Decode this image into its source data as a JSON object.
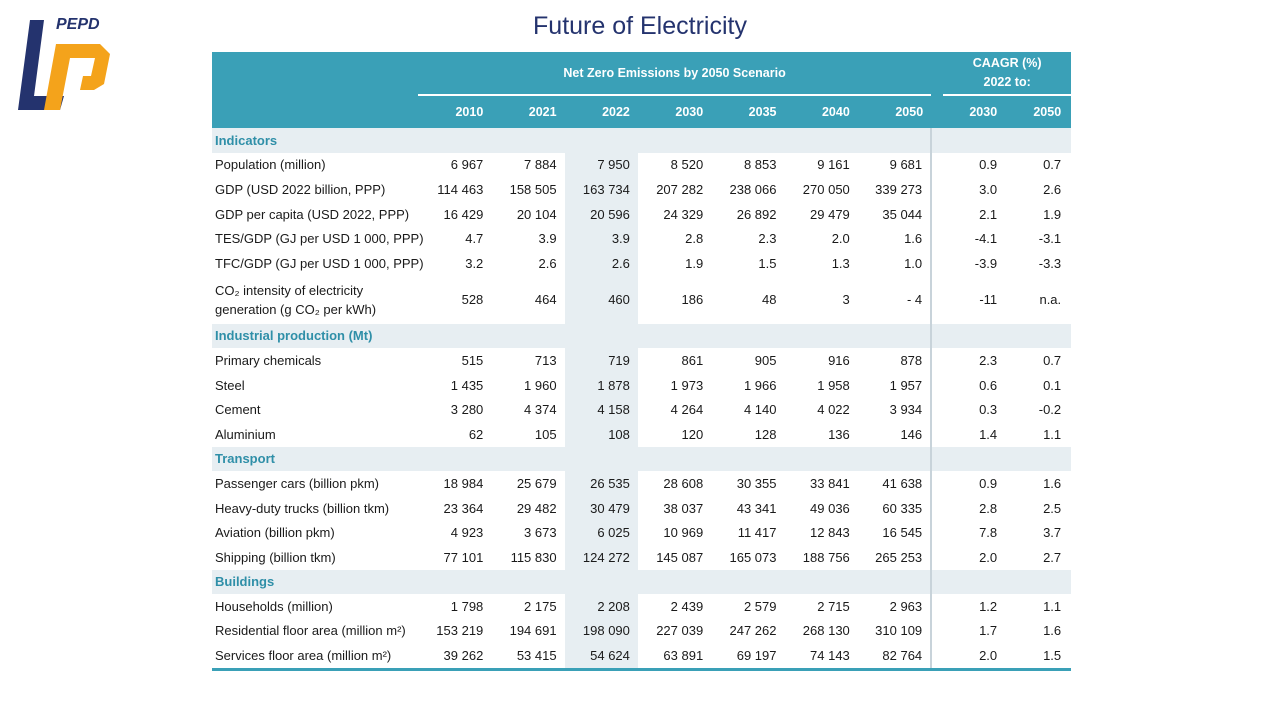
{
  "brand": {
    "logo_text": "PEPD",
    "colors": {
      "blue": "#24336e",
      "orange": "#f4a31b"
    }
  },
  "title": "Future of Electricity",
  "header": {
    "scenario": "Net Zero Emissions by 2050 Scenario",
    "caagr_line1": "CAAGR (%)",
    "caagr_line2": "2022 to:",
    "years": [
      "2010",
      "2021",
      "2022",
      "2030",
      "2035",
      "2040",
      "2050"
    ],
    "caagr_years": [
      "2030",
      "2050"
    ]
  },
  "sections": [
    {
      "title": "Indicators",
      "rows": [
        {
          "label": "Population (million)",
          "values": [
            "6 967",
            "7 884",
            "7 950",
            "8 520",
            "8 853",
            "9 161",
            "9 681"
          ],
          "caagr": [
            "0.9",
            "0.7"
          ]
        },
        {
          "label": "GDP (USD 2022 billion, PPP)",
          "values": [
            "114 463",
            "158 505",
            "163 734",
            "207 282",
            "238 066",
            "270 050",
            "339 273"
          ],
          "caagr": [
            "3.0",
            "2.6"
          ]
        },
        {
          "label": "GDP per capita (USD 2022, PPP)",
          "values": [
            "16 429",
            "20 104",
            "20 596",
            "24 329",
            "26 892",
            "29 479",
            "35 044"
          ],
          "caagr": [
            "2.1",
            "1.9"
          ]
        },
        {
          "label": "TES/GDP (GJ per USD 1 000, PPP)",
          "values": [
            "4.7",
            "3.9",
            "3.9",
            "2.8",
            "2.3",
            "2.0",
            "1.6"
          ],
          "caagr": [
            "-4.1",
            "-3.1"
          ]
        },
        {
          "label": "TFC/GDP (GJ per USD 1 000, PPP)",
          "values": [
            "3.2",
            "2.6",
            "2.6",
            "1.9",
            "1.5",
            "1.3",
            "1.0"
          ],
          "caagr": [
            "-3.9",
            "-3.3"
          ]
        },
        {
          "label": "CO₂ intensity of electricity",
          "label2": "generation (g CO₂ per kWh)",
          "values": [
            "528",
            "464",
            "460",
            "186",
            "48",
            "3",
            "- 4"
          ],
          "caagr": [
            "-11",
            "n.a."
          ]
        }
      ]
    },
    {
      "title": "Industrial production (Mt)",
      "rows": [
        {
          "label": "Primary chemicals",
          "values": [
            "515",
            "713",
            "719",
            "861",
            "905",
            "916",
            "878"
          ],
          "caagr": [
            "2.3",
            "0.7"
          ]
        },
        {
          "label": "Steel",
          "values": [
            "1 435",
            "1 960",
            "1 878",
            "1 973",
            "1 966",
            "1 958",
            "1 957"
          ],
          "caagr": [
            "0.6",
            "0.1"
          ]
        },
        {
          "label": "Cement",
          "values": [
            "3 280",
            "4 374",
            "4 158",
            "4 264",
            "4 140",
            "4 022",
            "3 934"
          ],
          "caagr": [
            "0.3",
            "-0.2"
          ]
        },
        {
          "label": "Aluminium",
          "values": [
            "62",
            "105",
            "108",
            "120",
            "128",
            "136",
            "146"
          ],
          "caagr": [
            "1.4",
            "1.1"
          ]
        }
      ]
    },
    {
      "title": "Transport",
      "rows": [
        {
          "label": "Passenger cars (billion pkm)",
          "values": [
            "18 984",
            "25 679",
            "26 535",
            "28 608",
            "30 355",
            "33 841",
            "41 638"
          ],
          "caagr": [
            "0.9",
            "1.6"
          ]
        },
        {
          "label": "Heavy-duty trucks (billion tkm)",
          "values": [
            "23 364",
            "29 482",
            "30 479",
            "38 037",
            "43 341",
            "49 036",
            "60 335"
          ],
          "caagr": [
            "2.8",
            "2.5"
          ]
        },
        {
          "label": "Aviation (billion pkm)",
          "values": [
            "4 923",
            "3 673",
            "6 025",
            "10 969",
            "11 417",
            "12 843",
            "16 545"
          ],
          "caagr": [
            "7.8",
            "3.7"
          ]
        },
        {
          "label": "Shipping (billion tkm)",
          "values": [
            "77 101",
            "115 830",
            "124 272",
            "145 087",
            "165 073",
            "188 756",
            "265 253"
          ],
          "caagr": [
            "2.0",
            "2.7"
          ]
        }
      ]
    },
    {
      "title": "Buildings",
      "rows": [
        {
          "label": "Households (million)",
          "values": [
            "1 798",
            "2 175",
            "2 208",
            "2 439",
            "2 579",
            "2 715",
            "2 963"
          ],
          "caagr": [
            "1.2",
            "1.1"
          ]
        },
        {
          "label": "Residential floor area (million m²)",
          "values": [
            "153 219",
            "194 691",
            "198 090",
            "227 039",
            "247 262",
            "268 130",
            "310 109"
          ],
          "caagr": [
            "1.7",
            "1.6"
          ]
        },
        {
          "label": "Services floor area (million m²)",
          "values": [
            "39 262",
            "53 415",
            "54 624",
            "63 891",
            "69 197",
            "74 143",
            "82 764"
          ],
          "caagr": [
            "2.0",
            "1.5"
          ]
        }
      ]
    }
  ]
}
